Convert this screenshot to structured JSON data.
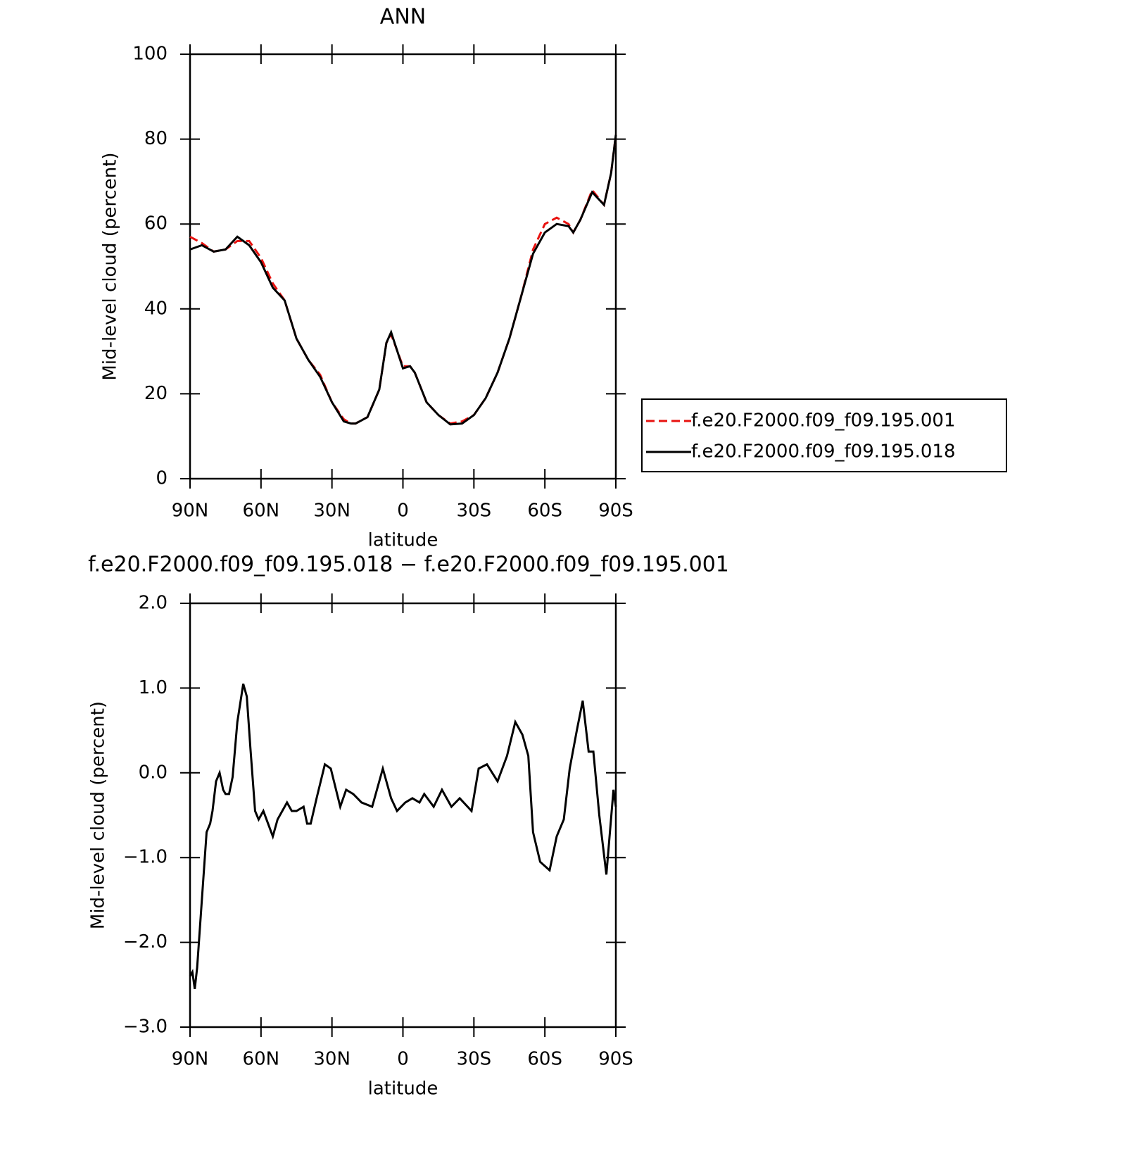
{
  "chart_data": [
    {
      "type": "line",
      "title": "ANN",
      "x_label": "latitude",
      "y_label": "Mid-level cloud (percent)",
      "x": [
        90,
        85,
        80,
        75,
        70,
        65,
        60,
        55,
        50,
        45,
        40,
        35,
        30,
        25,
        22,
        20,
        15,
        10,
        7,
        5,
        0,
        -3,
        -5,
        -10,
        -15,
        -20,
        -25,
        -30,
        -35,
        -40,
        -45,
        -50,
        -55,
        -60,
        -65,
        -70,
        -72,
        -75,
        -80,
        -85,
        -88,
        -90
      ],
      "series": [
        {
          "name": "f.e20.F2000.f09_f09.195.001",
          "color": "#e8120f",
          "line_style": "dashed",
          "values": [
            57,
            55.5,
            53.5,
            54,
            56,
            56,
            52,
            46,
            42,
            33,
            28,
            24.5,
            18,
            14,
            13,
            13,
            14.5,
            21,
            32,
            34,
            26.5,
            26.5,
            25,
            18,
            15,
            13,
            13.5,
            15,
            19,
            25,
            33,
            43,
            54,
            60,
            61.5,
            60,
            58,
            61,
            68,
            64.5,
            72,
            81
          ]
        },
        {
          "name": "f.e20.F2000.f09_f09.195.018",
          "color": "#000000",
          "line_style": "solid",
          "values": [
            54,
            55,
            53.5,
            54,
            57,
            55,
            51,
            45,
            42,
            33,
            28,
            24,
            18,
            13.5,
            13,
            13,
            14.5,
            21,
            32,
            34.5,
            26,
            26.5,
            25,
            18,
            15,
            12.8,
            13,
            15,
            19,
            25,
            33,
            43,
            53,
            58,
            60,
            59.5,
            58,
            61,
            67.5,
            64.5,
            72,
            81
          ]
        }
      ],
      "xlim": [
        90,
        -90
      ],
      "xticks": [
        {
          "value": 90,
          "label": "90N"
        },
        {
          "value": 60,
          "label": "60N"
        },
        {
          "value": 30,
          "label": "30N"
        },
        0,
        {
          "value": -30,
          "label": "30S"
        },
        {
          "value": -60,
          "label": "60S"
        },
        {
          "value": -90,
          "label": "90S"
        }
      ],
      "ylim": [
        0,
        100
      ],
      "yticks": [
        0,
        20,
        40,
        60,
        80,
        100
      ],
      "legend": "right"
    },
    {
      "type": "line",
      "title": "f.e20.F2000.f09_f09.195.018 − f.e20.F2000.f09_f09.195.001",
      "x_label": "latitude",
      "y_label": "Mid-level cloud (percent)",
      "x": [
        90,
        89,
        88,
        87,
        85.5,
        83,
        81.5,
        80.5,
        79,
        77.5,
        76,
        75,
        73.5,
        72,
        70,
        67.5,
        66,
        64.5,
        62.5,
        61,
        59,
        57,
        55,
        53,
        51,
        49,
        47,
        45,
        42,
        40.5,
        39,
        36.5,
        33,
        30.5,
        26.5,
        24,
        21,
        17.5,
        13,
        8.5,
        5,
        2.5,
        -1,
        -4,
        -7,
        -9,
        -13,
        -16.5,
        -20.5,
        -24,
        -29,
        -32,
        -35.5,
        -40,
        -44,
        -47.5,
        -50.5,
        -53,
        -55,
        -58,
        -62,
        -65,
        -68,
        -70.5,
        -73.5,
        -76,
        -78.5,
        -80.5,
        -83,
        -86,
        -89,
        -90
      ],
      "series": [
        {
          "color": "#000000",
          "line_style": "solid",
          "values": [
            -2.4,
            -2.35,
            -2.55,
            -2.3,
            -1.7,
            -0.7,
            -0.6,
            -0.45,
            -0.1,
            0.0,
            -0.2,
            -0.25,
            -0.25,
            -0.05,
            0.6,
            1.05,
            0.9,
            0.3,
            -0.45,
            -0.55,
            -0.45,
            -0.6,
            -0.75,
            -0.55,
            -0.45,
            -0.35,
            -0.45,
            -0.45,
            -0.4,
            -0.6,
            -0.6,
            -0.3,
            0.1,
            0.05,
            -0.4,
            -0.2,
            -0.25,
            -0.35,
            -0.4,
            0.05,
            -0.3,
            -0.45,
            -0.35,
            -0.3,
            -0.35,
            -0.25,
            -0.4,
            -0.2,
            -0.4,
            -0.3,
            -0.45,
            0.05,
            0.1,
            -0.1,
            0.2,
            0.6,
            0.45,
            0.2,
            -0.7,
            -1.05,
            -1.15,
            -0.75,
            -0.55,
            0.05,
            0.5,
            0.85,
            0.25,
            0.25,
            -0.5,
            -1.2,
            -0.2,
            -0.4
          ]
        }
      ],
      "xlim": [
        90,
        -90
      ],
      "xticks": [
        {
          "value": 90,
          "label": "90N"
        },
        {
          "value": 60,
          "label": "60N"
        },
        {
          "value": 30,
          "label": "30N"
        },
        0,
        {
          "value": -30,
          "label": "30S"
        },
        {
          "value": -60,
          "label": "60S"
        },
        {
          "value": -90,
          "label": "90S"
        }
      ],
      "ylim": [
        -3,
        2
      ],
      "yticks": [
        {
          "value": -3,
          "label": "−3.0"
        },
        {
          "value": -2,
          "label": "−2.0"
        },
        {
          "value": -1,
          "label": "−1.0"
        },
        {
          "value": 0,
          "label": "0.0"
        },
        {
          "value": 1,
          "label": "1.0"
        },
        {
          "value": 2,
          "label": "2.0"
        }
      ]
    }
  ]
}
